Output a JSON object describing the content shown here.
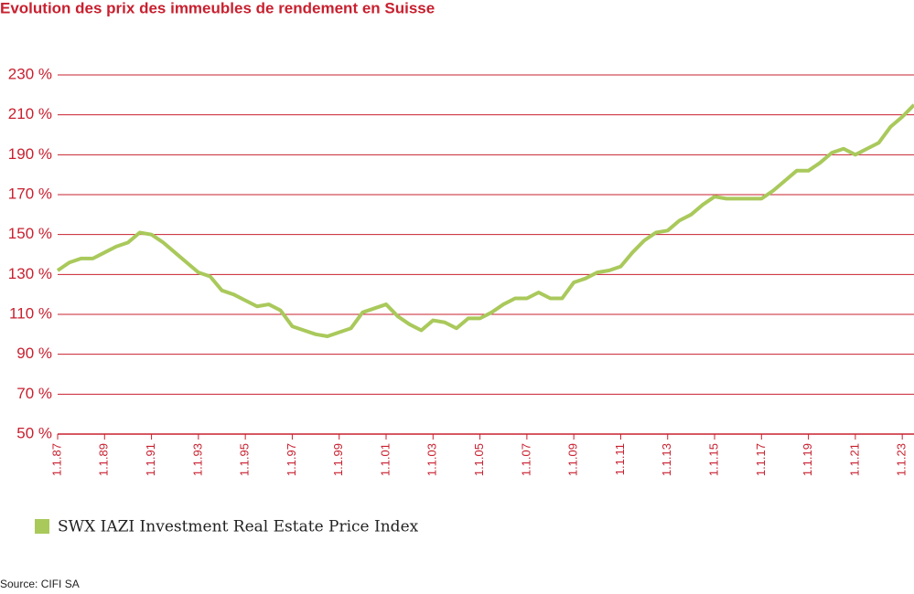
{
  "chart_data": {
    "type": "line",
    "title": "Evolution des prix des immeubles de rendement en Suisse",
    "source": "Source: CIFI SA",
    "categories": [
      "1.1.87",
      null,
      null,
      null,
      "1.1.89",
      null,
      null,
      null,
      "1.1.91",
      null,
      null,
      null,
      "1.1.93",
      null,
      null,
      null,
      "1.1.95",
      null,
      null,
      null,
      "1.1.97",
      null,
      null,
      null,
      "1.1.99",
      null,
      null,
      null,
      "1.1.01",
      null,
      null,
      null,
      "1.1.03",
      null,
      null,
      null,
      "1.1.05",
      null,
      null,
      null,
      "1.1.07",
      null,
      null,
      null,
      "1.1.09",
      null,
      null,
      null,
      "1.1.11",
      null,
      null,
      null,
      "1.1.13",
      null,
      null,
      null,
      "1.1.15",
      null,
      null,
      null,
      "1.1.17",
      null,
      null,
      null,
      "1.1.19",
      null,
      null,
      null,
      "1.1.21",
      null,
      null,
      null,
      "1.1.23",
      null
    ],
    "series": [
      {
        "name": "SWX IAZI Investment Real Estate Price Index",
        "color": "#a9c95b",
        "values": [
          132,
          136,
          138,
          138,
          141,
          144,
          146,
          151,
          150,
          146,
          141,
          136,
          131,
          129,
          122,
          120,
          117,
          114,
          115,
          112,
          104,
          102,
          100,
          99,
          101,
          103,
          111,
          113,
          115,
          109,
          105,
          102,
          107,
          106,
          103,
          108,
          108,
          111,
          115,
          118,
          118,
          121,
          118,
          118,
          126,
          128,
          131,
          132,
          134,
          141,
          147,
          151,
          152,
          157,
          160,
          165,
          169,
          168,
          168,
          168,
          168,
          172,
          177,
          182,
          182,
          186,
          191,
          193,
          190,
          193,
          196,
          204,
          209,
          215
        ]
      }
    ],
    "ylim": [
      50,
      230
    ],
    "yticks": [
      {
        "value": 50,
        "label": "50 %"
      },
      {
        "value": 70,
        "label": "70 %"
      },
      {
        "value": 90,
        "label": "90 %"
      },
      {
        "value": 110,
        "label": "110 %"
      },
      {
        "value": 130,
        "label": "130 %"
      },
      {
        "value": 150,
        "label": "150 %"
      },
      {
        "value": 170,
        "label": "170 %"
      },
      {
        "value": 190,
        "label": "190 %"
      },
      {
        "value": 210,
        "label": "210 %"
      },
      {
        "value": 230,
        "label": "230 %"
      }
    ],
    "grid": true,
    "axis_color": "#c8202f"
  }
}
